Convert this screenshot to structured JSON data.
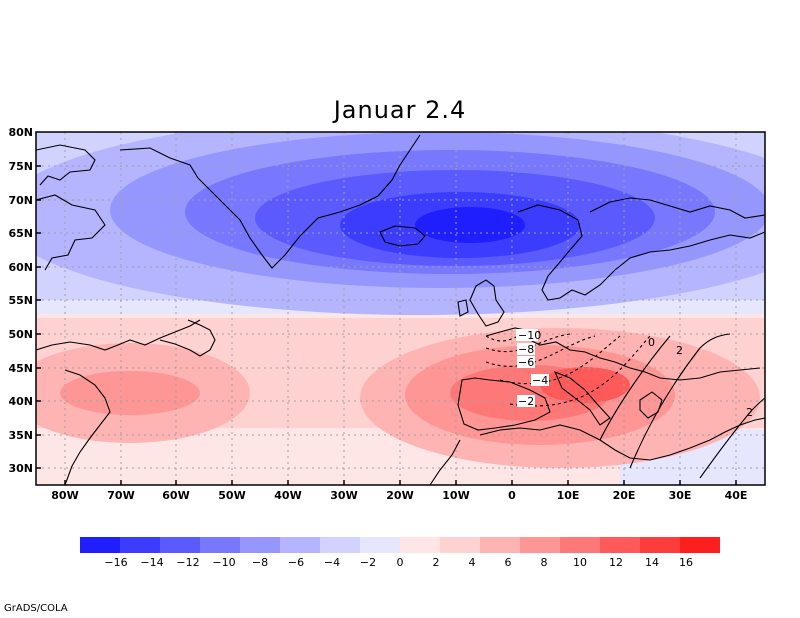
{
  "title": "Januar 2.4",
  "credit": "GrADS/COLA",
  "lat_labels": [
    "80N",
    "75N",
    "70N",
    "65N",
    "60N",
    "55N",
    "50N",
    "45N",
    "40N",
    "35N",
    "30N"
  ],
  "lon_labels": [
    "80W",
    "70W",
    "60W",
    "50W",
    "40W",
    "30W",
    "20W",
    "10W",
    "0",
    "10E",
    "20E",
    "30E",
    "40E"
  ],
  "colorbar": {
    "colors": [
      "#1e1eff",
      "#3c3cff",
      "#5a5aff",
      "#7878ff",
      "#9696ff",
      "#b4b4ff",
      "#d2d2ff",
      "#e6e6ff",
      "#ffe6e6",
      "#ffd2d2",
      "#ffb4b4",
      "#ff9696",
      "#ff7878",
      "#ff5a5a",
      "#ff3c3c",
      "#ff1e1e"
    ],
    "labels": [
      "−16",
      "−14",
      "−12",
      "−10",
      "−8",
      "−6",
      "−4",
      "−2",
      "0",
      "2",
      "4",
      "6",
      "8",
      "10",
      "12",
      "14",
      "16"
    ]
  },
  "contour_labels": [
    "−10",
    "−8",
    "−6",
    "−4",
    "−2",
    "0",
    "2",
    "2"
  ]
}
